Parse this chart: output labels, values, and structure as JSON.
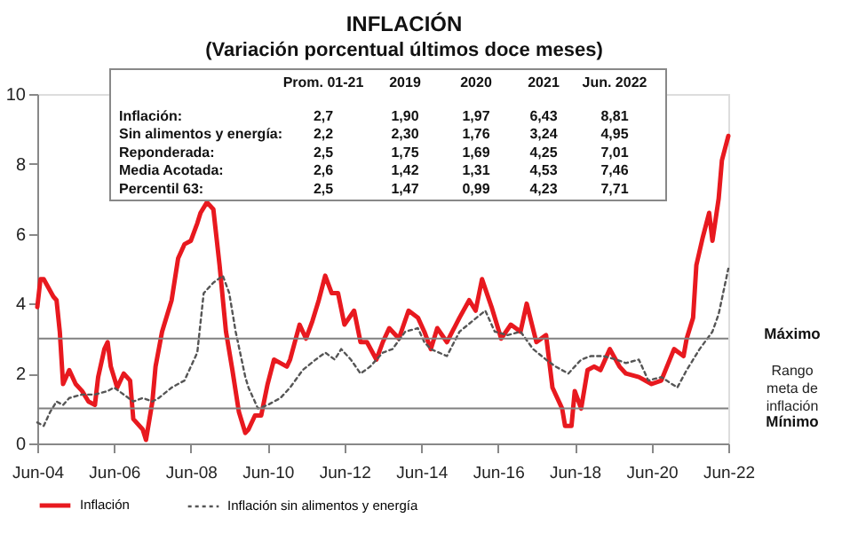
{
  "chart_data": {
    "type": "line",
    "title": "INFLACIÓN",
    "subtitle": "(Variación porcentual últimos doce meses)",
    "xlim": [
      "2004-06",
      "2022-06"
    ],
    "xticks": [
      {
        "value": "2004-06",
        "label": "Jun-04"
      },
      {
        "value": "2006-06",
        "label": "Jun-06"
      },
      {
        "value": "2008-06",
        "label": "Jun-08"
      },
      {
        "value": "2010-06",
        "label": "Jun-10"
      },
      {
        "value": "2012-06",
        "label": "Jun-12"
      },
      {
        "value": "2014-06",
        "label": "Jun-14"
      },
      {
        "value": "2016-06",
        "label": "Jun-16"
      },
      {
        "value": "2018-06",
        "label": "Jun-18"
      },
      {
        "value": "2020-06",
        "label": "Jun-20"
      },
      {
        "value": "2022-06",
        "label": "Jun-22"
      }
    ],
    "ylim": [
      0,
      10
    ],
    "yticks": [
      0,
      2,
      4,
      6,
      8,
      10
    ],
    "grid": false,
    "legend": "bottom",
    "series": [
      {
        "name": "Inflación",
        "color": "#e8191f",
        "line_style": "solid",
        "x": [
          "2004-06",
          "2004-07",
          "2004-08",
          "2004-11",
          "2004-12",
          "2005-01",
          "2005-02",
          "2005-04",
          "2005-06",
          "2005-08",
          "2005-10",
          "2005-12",
          "2006-01",
          "2006-03",
          "2006-04",
          "2006-05",
          "2006-07",
          "2006-09",
          "2006-11",
          "2006-12",
          "2007-03",
          "2007-04",
          "2007-06",
          "2007-07",
          "2007-09",
          "2007-12",
          "2008-02",
          "2008-04",
          "2008-06",
          "2008-08",
          "2008-09",
          "2008-11",
          "2009-01",
          "2009-03",
          "2009-05",
          "2009-07",
          "2009-09",
          "2009-11",
          "2009-12",
          "2010-02",
          "2010-04",
          "2010-06",
          "2010-08",
          "2010-10",
          "2010-12",
          "2011-01",
          "2011-04",
          "2011-06",
          "2011-08",
          "2011-10",
          "2011-12",
          "2012-02",
          "2012-04",
          "2012-06",
          "2012-09",
          "2012-11",
          "2013-01",
          "2013-04",
          "2013-06",
          "2013-08",
          "2013-11",
          "2014-02",
          "2014-05",
          "2014-07",
          "2014-09",
          "2014-11",
          "2015-02",
          "2015-06",
          "2015-09",
          "2015-11",
          "2016-01",
          "2016-04",
          "2016-07",
          "2016-10",
          "2017-01",
          "2017-03",
          "2017-06",
          "2017-09",
          "2017-11",
          "2018-02",
          "2018-03",
          "2018-05",
          "2018-06",
          "2018-08",
          "2018-10",
          "2018-12",
          "2019-02",
          "2019-05",
          "2019-08",
          "2019-10",
          "2020-02",
          "2020-06",
          "2020-09",
          "2021-01",
          "2021-04",
          "2021-05",
          "2021-07",
          "2021-08",
          "2021-10",
          "2021-12",
          "2022-01",
          "2022-03",
          "2022-04",
          "2022-06"
        ],
        "values": [
          3.9,
          4.7,
          4.7,
          4.2,
          4.1,
          3.2,
          1.7,
          2.1,
          1.7,
          1.5,
          1.2,
          1.1,
          1.9,
          2.7,
          2.9,
          2.2,
          1.6,
          2.0,
          1.8,
          0.7,
          0.4,
          0.1,
          1.2,
          2.2,
          3.2,
          4.1,
          5.3,
          5.7,
          5.8,
          6.3,
          6.6,
          6.9,
          6.7,
          5.1,
          3.2,
          2.1,
          0.9,
          0.3,
          0.4,
          0.8,
          0.8,
          1.7,
          2.4,
          2.3,
          2.2,
          2.4,
          3.4,
          3.0,
          3.5,
          4.1,
          4.8,
          4.3,
          4.3,
          3.4,
          3.8,
          2.9,
          2.9,
          2.4,
          2.9,
          3.3,
          3.0,
          3.8,
          3.6,
          3.2,
          2.7,
          3.3,
          2.9,
          3.6,
          4.1,
          3.8,
          4.7,
          3.9,
          3.0,
          3.4,
          3.2,
          4.0,
          2.9,
          3.1,
          1.6,
          1.0,
          0.5,
          0.5,
          1.5,
          1.0,
          2.1,
          2.2,
          2.1,
          2.7,
          2.2,
          2.0,
          1.9,
          1.7,
          1.8,
          2.7,
          2.5,
          3.0,
          3.6,
          5.1,
          5.9,
          6.6,
          5.8,
          7.0,
          8.1,
          8.8
        ]
      },
      {
        "name": "Inflación sin alimentos y energía",
        "color": "#555555",
        "line_style": "dotted",
        "x": [
          "2004-06",
          "2004-08",
          "2004-10",
          "2004-12",
          "2005-02",
          "2005-04",
          "2005-08",
          "2005-12",
          "2006-04",
          "2006-06",
          "2006-09",
          "2006-12",
          "2007-03",
          "2007-06",
          "2007-08",
          "2007-12",
          "2008-04",
          "2008-08",
          "2008-10",
          "2009-01",
          "2009-04",
          "2009-06",
          "2009-08",
          "2009-11",
          "2009-12",
          "2010-03",
          "2010-06",
          "2010-10",
          "2011-01",
          "2011-05",
          "2011-09",
          "2011-12",
          "2012-03",
          "2012-05",
          "2012-08",
          "2012-11",
          "2013-02",
          "2013-06",
          "2013-09",
          "2014-01",
          "2014-05",
          "2014-07",
          "2014-09",
          "2015-02",
          "2015-06",
          "2015-10",
          "2016-02",
          "2016-05",
          "2016-09",
          "2017-01",
          "2017-05",
          "2017-09",
          "2017-12",
          "2018-04",
          "2018-08",
          "2018-11",
          "2019-03",
          "2019-07",
          "2019-10",
          "2020-02",
          "2020-05",
          "2020-09",
          "2021-02",
          "2021-05",
          "2021-09",
          "2022-01",
          "2022-03",
          "2022-06"
        ],
        "values": [
          0.6,
          0.5,
          0.9,
          1.2,
          1.1,
          1.3,
          1.4,
          1.4,
          1.5,
          1.6,
          1.4,
          1.2,
          1.3,
          1.2,
          1.3,
          1.6,
          1.8,
          2.6,
          4.3,
          4.6,
          4.8,
          4.3,
          3.2,
          1.9,
          1.6,
          1.0,
          1.1,
          1.3,
          1.6,
          2.1,
          2.4,
          2.6,
          2.4,
          2.7,
          2.4,
          2.0,
          2.2,
          2.6,
          2.7,
          3.2,
          3.3,
          2.9,
          2.7,
          2.5,
          3.2,
          3.5,
          3.8,
          3.2,
          3.1,
          3.2,
          2.7,
          2.4,
          2.2,
          2.0,
          2.4,
          2.5,
          2.5,
          2.4,
          2.3,
          2.4,
          1.8,
          1.9,
          1.6,
          2.1,
          2.7,
          3.2,
          3.7,
          5.0
        ]
      }
    ],
    "ref_lines": [
      {
        "axis": "y",
        "value": 3,
        "label": "Máximo",
        "color": "#808080"
      },
      {
        "axis": "y",
        "value": 1,
        "label": "Mínimo",
        "color": "#808080"
      }
    ],
    "annotations": [
      "Rango meta de inflación",
      "Prom. 01-21",
      "2019",
      "2020",
      "2021",
      "Jun. 2022",
      "Inflación:",
      "2,7",
      "1,90",
      "1,97",
      "6,43",
      "8,81",
      "Sin alimentos y energía:",
      "2,2",
      "2,30",
      "1,76",
      "3,24",
      "4,95",
      "Reponderada:",
      "2,5",
      "1,75",
      "1,69",
      "4,25",
      "7,01",
      "Media Acotada:",
      "2,6",
      "1,42",
      "1,31",
      "4,53",
      "7,46",
      "Percentil 63:",
      "2,5",
      "1,47",
      "0,99",
      "4,23",
      "7,71"
    ]
  }
}
